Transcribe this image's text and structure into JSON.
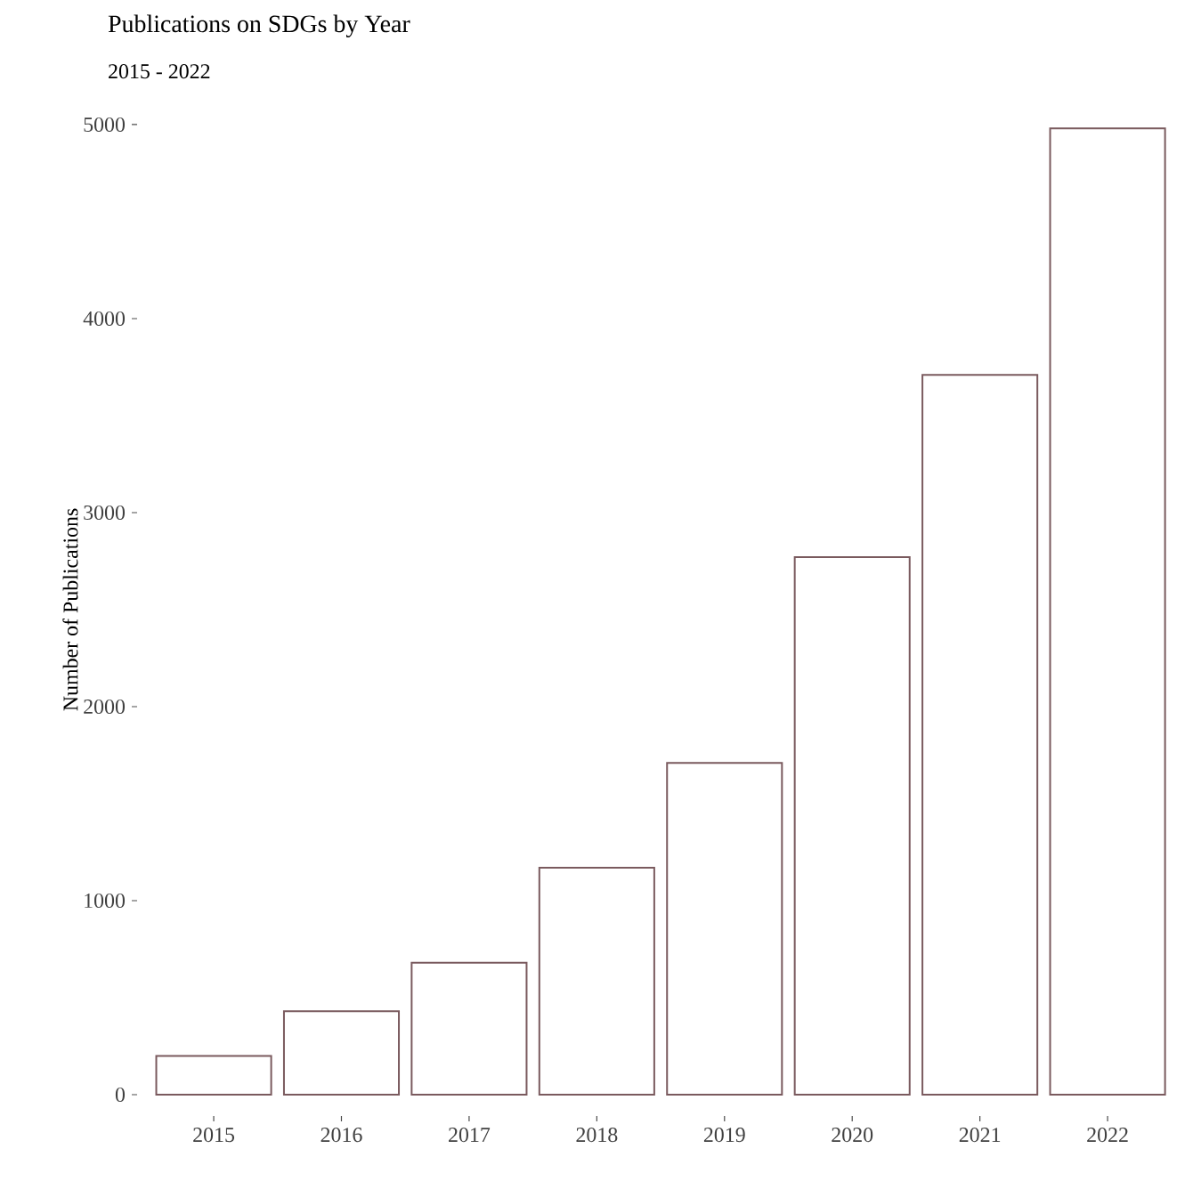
{
  "chart_data": {
    "type": "bar",
    "title": "Publications on SDGs by Year",
    "subtitle": "2015 - 2022",
    "ylabel": "Number of Publications",
    "categories": [
      "2015",
      "2016",
      "2017",
      "2018",
      "2019",
      "2020",
      "2021",
      "2022"
    ],
    "values": [
      200,
      430,
      680,
      1170,
      1710,
      2770,
      3710,
      4980
    ],
    "color": "#ffffff",
    "ylim": [
      0,
      5000
    ],
    "yticks": [
      0,
      1000,
      2000,
      3000,
      4000,
      5000
    ],
    "grid": false
  }
}
